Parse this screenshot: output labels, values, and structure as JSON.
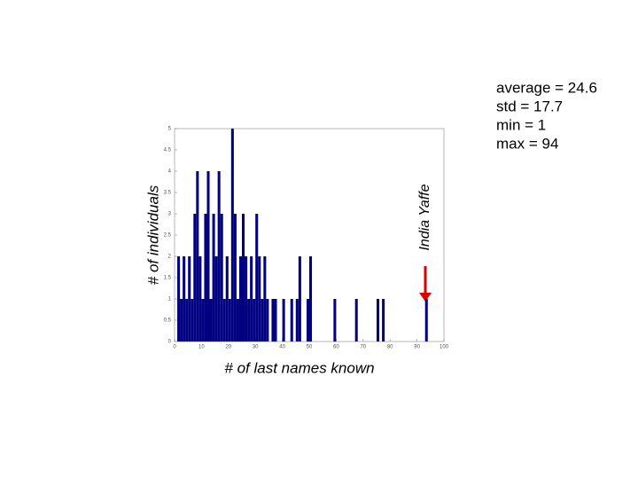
{
  "chart_data": {
    "type": "histogram",
    "xlabel": "# of last names known",
    "ylabel": "# of individuals",
    "color": "#000080",
    "bins": [
      0,
      1,
      2,
      3,
      4,
      5,
      6,
      7,
      8,
      9,
      10,
      11,
      12,
      13,
      14,
      15,
      16,
      17,
      18,
      19,
      20,
      21,
      22,
      23,
      24,
      25,
      26,
      27,
      28,
      29,
      30,
      31,
      32,
      33,
      34,
      35,
      36,
      37,
      38,
      39,
      40,
      41,
      42,
      43,
      44,
      45,
      46,
      47,
      48,
      49,
      50,
      51,
      52,
      53,
      54,
      55,
      56,
      57,
      58,
      59,
      60,
      61,
      62,
      63,
      64,
      65,
      66,
      67,
      68,
      69,
      70,
      71,
      72,
      73,
      74,
      75,
      76,
      77,
      78,
      79,
      80,
      81,
      82,
      83,
      84,
      85,
      86,
      87,
      88,
      89,
      90,
      91,
      92,
      93,
      94,
      95,
      96,
      97,
      98,
      99,
      100
    ],
    "counts": [
      0,
      2,
      1,
      2,
      1,
      2,
      1,
      3,
      4,
      2,
      1,
      3,
      4,
      1,
      3,
      2,
      4,
      3,
      1,
      2,
      1,
      5,
      3,
      1,
      2,
      3,
      2,
      1,
      2,
      1,
      3,
      2,
      1,
      2,
      1,
      0,
      1,
      1,
      0,
      0,
      1,
      0,
      0,
      1,
      0,
      1,
      2,
      0,
      0,
      1,
      2,
      0,
      0,
      0,
      0,
      0,
      0,
      0,
      0,
      1,
      0,
      0,
      0,
      0,
      0,
      0,
      0,
      1,
      0,
      0,
      0,
      0,
      0,
      0,
      0,
      1,
      0,
      1,
      0,
      0,
      0,
      0,
      0,
      0,
      0,
      0,
      0,
      0,
      0,
      0,
      0,
      0,
      0,
      1,
      0,
      0,
      0,
      0,
      0,
      0
    ],
    "xlim": [
      0,
      100
    ],
    "xticks": [
      0,
      10,
      20,
      30,
      40,
      50,
      60,
      70,
      80,
      90,
      100
    ],
    "ylim": [
      0,
      5
    ],
    "yticks": [
      0,
      0.5,
      1,
      1.5,
      2,
      2.5,
      3,
      3.5,
      4,
      4.5,
      5
    ],
    "annotations": [
      "average = 24.6",
      "std = 17.7",
      "min = 1",
      "max = 94"
    ],
    "callout": "India Yaffe"
  }
}
